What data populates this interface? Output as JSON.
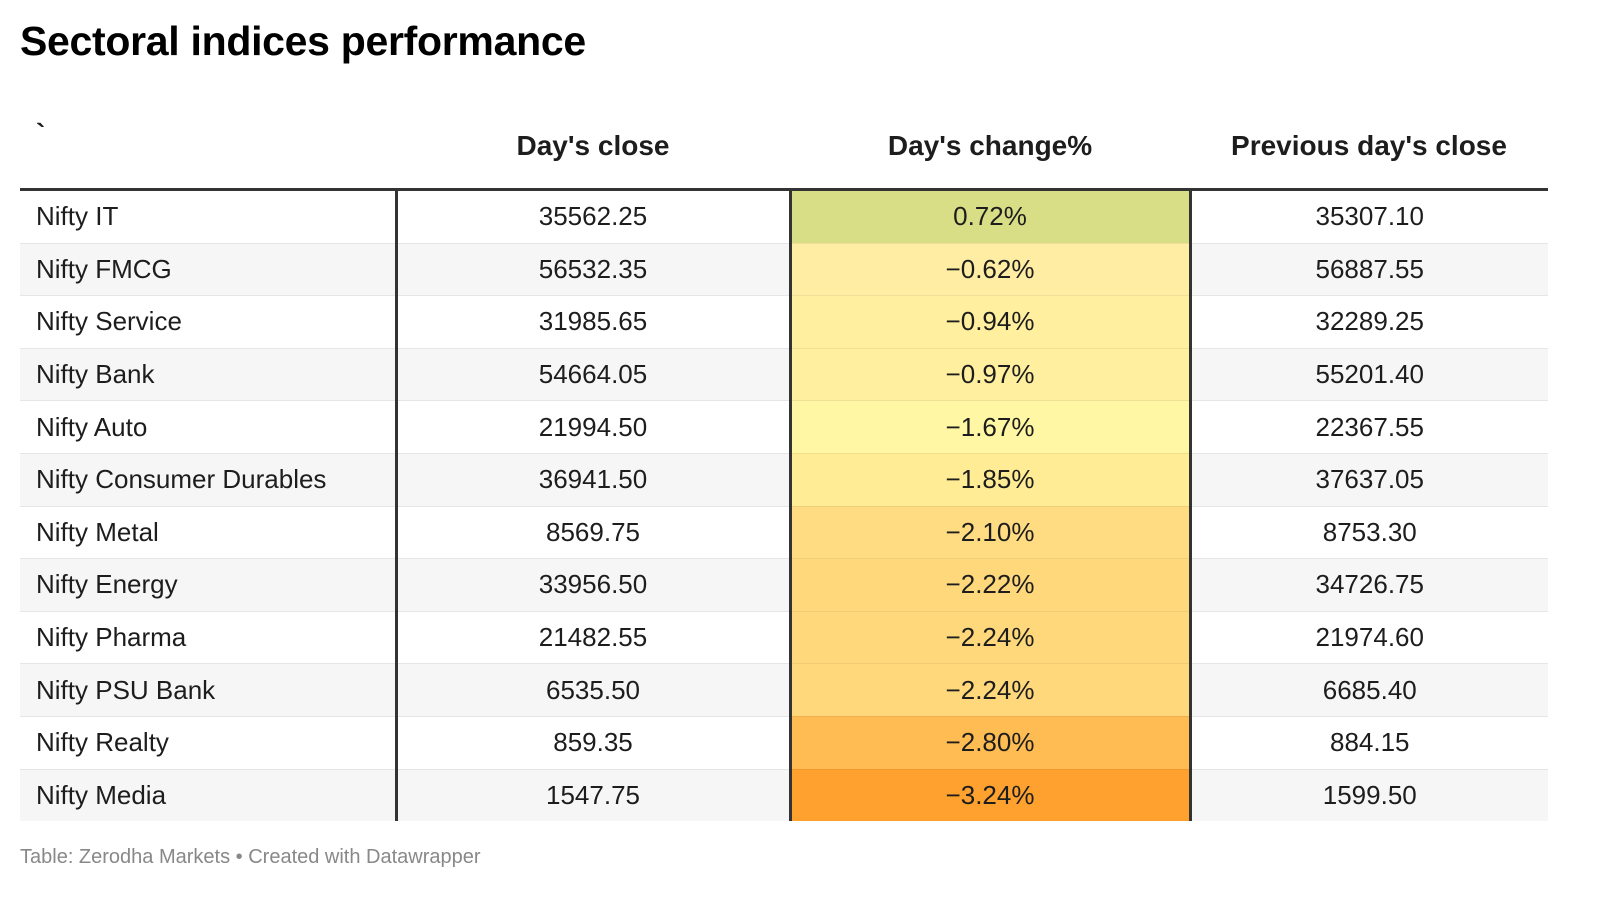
{
  "title": "Sectoral indices performance",
  "footer": "Table: Zerodha Markets • Created with Datawrapper",
  "colors": {
    "heat_max": "#d8de85",
    "heat_light": "#ffef9f",
    "heat_mid": "#ffd97d",
    "heat_min": "#ffa12e"
  },
  "chart_data": {
    "type": "table",
    "title": "Sectoral indices performance",
    "columns": [
      "`",
      "Day's close",
      "Day's change%",
      "Previous day's close"
    ],
    "rows": [
      {
        "name": "Nifty IT",
        "close": "35562.25",
        "change": "0.72%",
        "change_value": 0.72,
        "prev": "35307.10",
        "heat": "#d8de85"
      },
      {
        "name": "Nifty FMCG",
        "close": "56532.35",
        "change": "−0.62%",
        "change_value": -0.62,
        "prev": "56887.55",
        "heat": "#ffeda4"
      },
      {
        "name": "Nifty Service",
        "close": "31985.65",
        "change": "−0.94%",
        "change_value": -0.94,
        "prev": "32289.25",
        "heat": "#ffef9f"
      },
      {
        "name": "Nifty Bank",
        "close": "54664.05",
        "change": "−0.97%",
        "change_value": -0.97,
        "prev": "55201.40",
        "heat": "#ffef9f"
      },
      {
        "name": "Nifty Auto",
        "close": "21994.50",
        "change": "−1.67%",
        "change_value": -1.67,
        "prev": "22367.55",
        "heat": "#fff7a3"
      },
      {
        "name": "Nifty Consumer Durables",
        "close": "36941.50",
        "change": "−1.85%",
        "change_value": -1.85,
        "prev": "37637.05",
        "heat": "#ffec94"
      },
      {
        "name": "Nifty Metal",
        "close": "8569.75",
        "change": "−2.10%",
        "change_value": -2.1,
        "prev": "8753.30",
        "heat": "#ffdc82"
      },
      {
        "name": "Nifty Energy",
        "close": "33956.50",
        "change": "−2.22%",
        "change_value": -2.22,
        "prev": "34726.75",
        "heat": "#ffd87c"
      },
      {
        "name": "Nifty Pharma",
        "close": "21482.55",
        "change": "−2.24%",
        "change_value": -2.24,
        "prev": "21974.60",
        "heat": "#ffd87c"
      },
      {
        "name": "Nifty PSU Bank",
        "close": "6535.50",
        "change": "−2.24%",
        "change_value": -2.24,
        "prev": "6685.40",
        "heat": "#ffd87c"
      },
      {
        "name": "Nifty Realty",
        "close": "859.35",
        "change": "−2.80%",
        "change_value": -2.8,
        "prev": "884.15",
        "heat": "#ffbc53"
      },
      {
        "name": "Nifty Media",
        "close": "1547.75",
        "change": "−3.24%",
        "change_value": -3.24,
        "prev": "1599.50",
        "heat": "#ffa12e"
      }
    ]
  }
}
